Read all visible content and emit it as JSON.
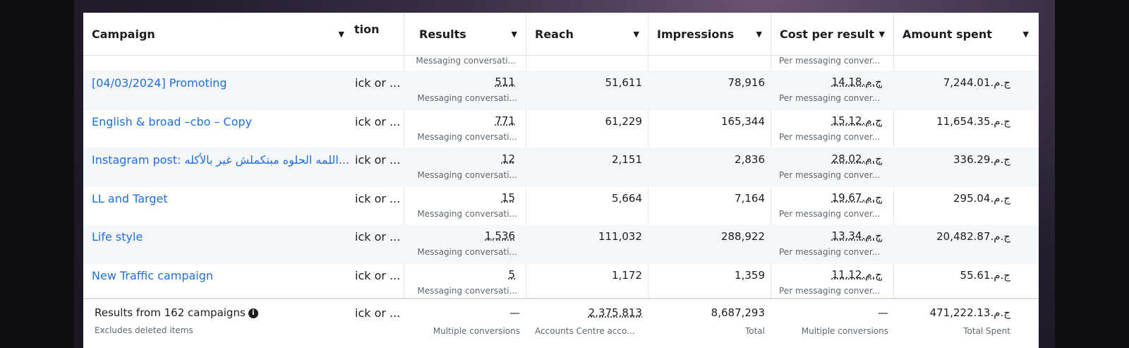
{
  "columns": {
    "campaign": "Campaign",
    "delivery": "tion",
    "results": "Results",
    "reach": "Reach",
    "impressions": "Impressions",
    "cost_per_result": "Cost per result",
    "amount_spent": "Amount spent"
  },
  "top_partial": {
    "results_sub": "Messaging conversati...",
    "cost_sub": "Per messaging conver..."
  },
  "rows": [
    {
      "name": "[04/03/2024] Promoting",
      "delivery": "ick or ...",
      "results": "511",
      "results_sub": "Messaging conversati...",
      "reach": "51,611",
      "impressions": "78,916",
      "cost": "ج.م.‏14.18",
      "cost_sub": "Per messaging conver...",
      "spent": "ج.م.‏7,244.01"
    },
    {
      "name": "English & broad –cbo – Copy",
      "delivery": "ick or ...",
      "results": "771",
      "results_sub": "Messaging conversati...",
      "reach": "61,229",
      "impressions": "165,344",
      "cost": "ج.م.‏15.12",
      "cost_sub": "Per messaging conver...",
      "spent": "ج.م.‏11,654.35"
    },
    {
      "name": "Instagram post: اللمه الحلوه مبتكملش غير بالأكله...",
      "delivery": "ick or ...",
      "results": "12",
      "results_sub": "Messaging conversati...",
      "reach": "2,151",
      "impressions": "2,836",
      "cost": "ج.م.‏28.02",
      "cost_sub": "Per messaging conver...",
      "spent": "ج.م.‏336.29"
    },
    {
      "name": "LL and Target",
      "delivery": "ick or ...",
      "results": "15",
      "results_sub": "Messaging conversati...",
      "reach": "5,664",
      "impressions": "7,164",
      "cost": "ج.م.‏19.67",
      "cost_sub": "Per messaging conver...",
      "spent": "ج.م.‏295.04"
    },
    {
      "name": "Life style",
      "delivery": "ick or ...",
      "results": "1,536",
      "results_sub": "Messaging conversati...",
      "reach": "111,032",
      "impressions": "288,922",
      "cost": "ج.م.‏13.34",
      "cost_sub": "Per messaging conver...",
      "spent": "ج.م.‏20,482.87"
    },
    {
      "name": "New Traffic campaign",
      "delivery": "ick or ...",
      "results": "5",
      "results_sub": "Messaging conversati...",
      "reach": "1,172",
      "impressions": "1,359",
      "cost": "ج.م.‏11.12",
      "cost_sub": "Per messaging conver...",
      "spent": "ج.م.‏55.61"
    }
  ],
  "footer": {
    "title": "Results from 162 campaigns",
    "subtitle": "Excludes deleted items",
    "delivery": "ick or ...",
    "results": "—",
    "results_sub": "Multiple conversions",
    "reach": "2,375,813",
    "reach_sub": "Accounts Centre acco...",
    "impressions": "8,687,293",
    "impressions_sub": "Total",
    "cost": "—",
    "cost_sub": "Multiple conversions",
    "spent": "ج.م.‏471,222.13",
    "spent_sub": "Total Spent"
  }
}
